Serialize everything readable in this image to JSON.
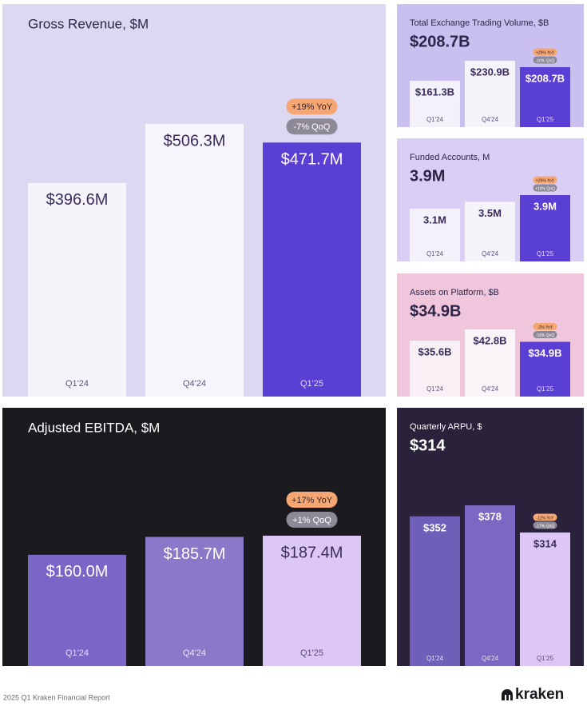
{
  "chart_data": [
    {
      "type": "bar",
      "title": "Gross Revenue, $M",
      "categories": [
        "Q1'24",
        "Q4'24",
        "Q1'25"
      ],
      "values": [
        396.6,
        506.3,
        471.7
      ],
      "value_labels": [
        "$396.6M",
        "$506.3M",
        "$471.7M"
      ],
      "colors": [
        "#f6f4fb",
        "#f7f5fb",
        "#5a3fd4"
      ],
      "background": "#dcd8f2",
      "badges": [
        "+19% YoY",
        "-7% QoQ"
      ]
    },
    {
      "type": "bar",
      "title": "Total Exchange Trading Volume, $B",
      "headline": "$208.7B",
      "categories": [
        "Q1'24",
        "Q4'24",
        "Q1'25"
      ],
      "values": [
        161.3,
        230.9,
        208.7
      ],
      "value_labels": [
        "$161.3B",
        "$230.9B",
        "$208.7B"
      ],
      "colors": [
        "#f4f1fb",
        "#f6f4fb",
        "#5a3fd4"
      ],
      "background": "#c9c0f0",
      "badges": [
        "+29% YoY",
        "-10% QoQ"
      ]
    },
    {
      "type": "bar",
      "title": "Funded Accounts, M",
      "headline": "3.9M",
      "categories": [
        "Q1'24",
        "Q4'24",
        "Q1'25"
      ],
      "values": [
        3.1,
        3.5,
        3.9
      ],
      "value_labels": [
        "3.1M",
        "3.5M",
        "3.9M"
      ],
      "colors": [
        "#f4f1fb",
        "#f6f4fb",
        "#5a3fd4"
      ],
      "background": "#d9cef3",
      "badges": [
        "+26% YoY",
        "+10% QoQ"
      ]
    },
    {
      "type": "bar",
      "title": "Assets on Platform, $B",
      "headline": "$34.9B",
      "categories": [
        "Q1'24",
        "Q4'24",
        "Q1'25"
      ],
      "values": [
        35.6,
        42.8,
        34.9
      ],
      "value_labels": [
        "$35.6B",
        "$42.8B",
        "$34.9B"
      ],
      "colors": [
        "#f8f0f5",
        "#faf3f7",
        "#5a3fd4"
      ],
      "background": "#efc6db",
      "badges": [
        "-2% YoY",
        "-18% QoQ"
      ]
    },
    {
      "type": "bar",
      "title": "Adjusted EBITDA, $M",
      "categories": [
        "Q1'24",
        "Q4'24",
        "Q1'25"
      ],
      "values": [
        160.0,
        185.7,
        187.4
      ],
      "value_labels": [
        "$160.0M",
        "$185.7M",
        "$187.4M"
      ],
      "colors": [
        "#7a66c6",
        "#8a78c9",
        "#dcc7f7"
      ],
      "background": "#1b1a1e",
      "badges": [
        "+17% YoY",
        "+1% QoQ"
      ]
    },
    {
      "type": "bar",
      "title": "Quarterly ARPU, $",
      "headline": "$314",
      "categories": [
        "Q1'24",
        "Q4'24",
        "Q1'25"
      ],
      "values": [
        352,
        378,
        314
      ],
      "value_labels": [
        "$352",
        "$378",
        "$314"
      ],
      "colors": [
        "#6f5fb8",
        "#7c68c2",
        "#ddc8f5"
      ],
      "background": "#29223a",
      "badges": [
        "-11% YoY",
        "-17% QoQ"
      ]
    }
  ],
  "footer": {
    "source": "2025 Q1 Kraken Financial Report",
    "logo": "kraken"
  }
}
